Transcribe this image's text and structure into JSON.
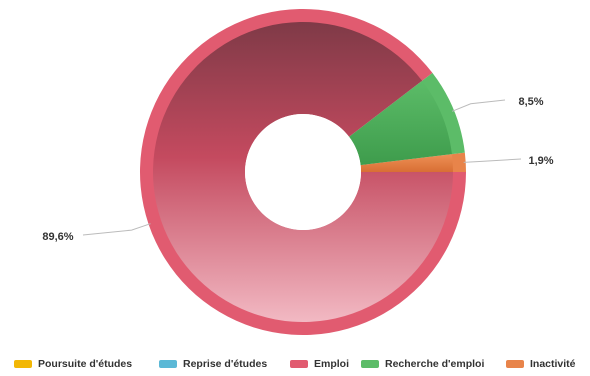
{
  "chart_data": {
    "type": "pie",
    "categories": [
      "Poursuite d'études",
      "Reprise d'études",
      "Emploi",
      "Recherche d'emploi",
      "Inactivité"
    ],
    "values": [
      0,
      0,
      89.6,
      8.5,
      1.9
    ],
    "value_labels": [
      "",
      "",
      "89,6%",
      "8,5%",
      "1,9%"
    ],
    "colors": [
      "#f2b705",
      "#5bb8d6",
      "#e15b70",
      "#5cbc68",
      "#e8844a"
    ],
    "donut": true,
    "legend_position": "bottom"
  }
}
